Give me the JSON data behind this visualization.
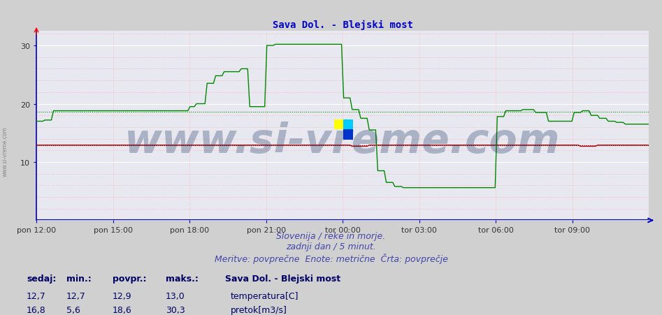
{
  "title": "Sava Dol. - Blejski most",
  "title_color": "#0000cc",
  "title_fontsize": 10,
  "bg_color": "#d0d0d0",
  "plot_bg_color": "#e8e8f0",
  "grid_color_major": "#ffffff",
  "grid_color_minor": "#ffaaaa",
  "grid_color_minor_v": "#ffaaaa",
  "x_labels": [
    "pon 12:00",
    "pon 15:00",
    "pon 18:00",
    "pon 21:00",
    "tor 00:00",
    "tor 03:00",
    "tor 06:00",
    "tor 09:00"
  ],
  "x_ticks_norm": [
    0.0,
    0.125,
    0.25,
    0.375,
    0.5,
    0.625,
    0.75,
    0.875
  ],
  "ylim": [
    0,
    32.5
  ],
  "yticks": [
    10,
    20,
    30
  ],
  "axis_color": "#0000cc",
  "temp_color": "#cc0000",
  "flow_color": "#008800",
  "temp_avg_color": "#cc0000",
  "flow_avg_color": "#008800",
  "temp_avg_dotted_color": "#000000",
  "footer_lines": [
    "Slovenija / reke in morje.",
    "zadnji dan / 5 minut.",
    "Meritve: povprečne  Enote: metrične  Črta: povprečje"
  ],
  "footer_color": "#4444aa",
  "footer_fontsize": 9,
  "legend_title": "Sava Dol. - Blejski most",
  "legend_title_color": "#000066",
  "legend_fontsize": 9,
  "stats_headers": [
    "sedaj:",
    "min.:",
    "povpr.:",
    "maks.:"
  ],
  "temp_stats": [
    "12,7",
    "12,7",
    "12,9",
    "13,0"
  ],
  "flow_stats": [
    "16,8",
    "5,6",
    "18,6",
    "30,3"
  ],
  "temp_label": "temperatura[C]",
  "flow_label": "pretok[m3/s]",
  "watermark": "www.si-vreme.com",
  "watermark_color": "#0a2a5a",
  "watermark_alpha": 0.28,
  "watermark_fontsize": 42,
  "n_points": 288,
  "flow_avg_line": 18.6,
  "temp_avg_line": 12.9,
  "temp_const": 12.9
}
